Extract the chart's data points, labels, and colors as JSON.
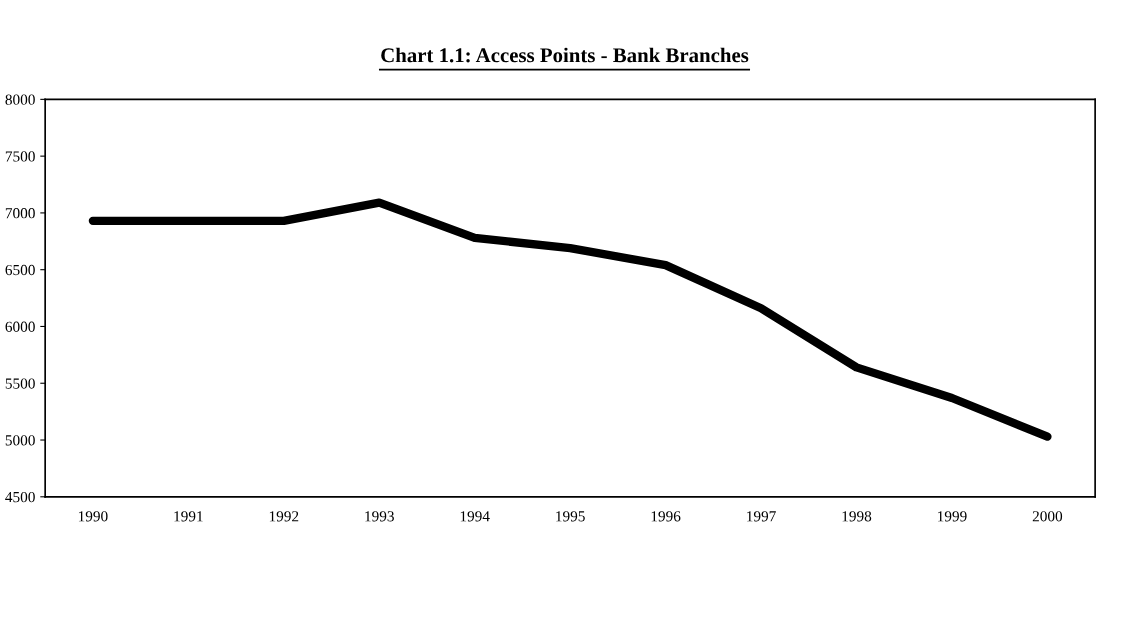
{
  "chart_data": {
    "type": "line",
    "title": "Chart 1.1: Access Points - Bank Branches",
    "categories": [
      "1990",
      "1991",
      "1992",
      "1993",
      "1994",
      "1995",
      "1996",
      "1997",
      "1998",
      "1999",
      "2000"
    ],
    "series": [
      {
        "color": "#000000",
        "values": [
          6930,
          6930,
          6930,
          7090,
          6780,
          6690,
          6540,
          6160,
          5640,
          5370,
          5030
        ]
      }
    ],
    "ylim": [
      4500,
      8000
    ],
    "yticks": [
      4500,
      5000,
      5500,
      6000,
      6500,
      7000,
      7500,
      8000
    ],
    "grid": false,
    "legend": false,
    "marker": "none",
    "line_style": "solid"
  }
}
